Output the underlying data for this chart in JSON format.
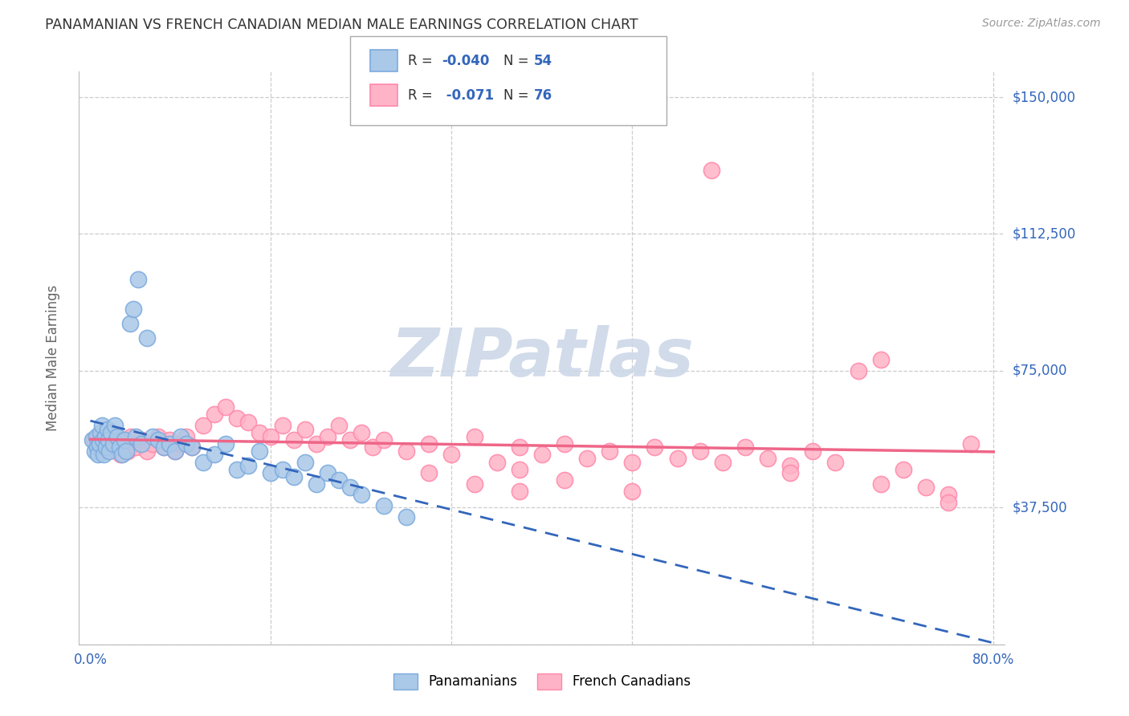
{
  "title": "PANAMANIAN VS FRENCH CANADIAN MEDIAN MALE EARNINGS CORRELATION CHART",
  "source": "Source: ZipAtlas.com",
  "ylabel": "Median Male Earnings",
  "r1": "-0.040",
  "n1": "54",
  "r2": " -0.071",
  "n2": "76",
  "legend_label1": "Panamanians",
  "legend_label2": "French Canadians",
  "blue_marker_color": "#aac8e8",
  "blue_marker_edge": "#7aaadd",
  "pink_marker_color": "#ffb3c6",
  "pink_marker_edge": "#ff88aa",
  "blue_line_color": "#3366bb",
  "pink_line_color": "#ee6688",
  "title_color": "#333333",
  "source_color": "#999999",
  "ylabel_color": "#666666",
  "tick_label_color": "#3366bb",
  "grid_color": "#cccccc",
  "xlim_min": 0,
  "xlim_max": 80,
  "ylim_min": 0,
  "ylim_max": 157000,
  "y_ticks": [
    0,
    37500,
    75000,
    112500,
    150000
  ],
  "y_right_labels": [
    "",
    "$37,500",
    "$75,000",
    "$112,500",
    "$150,000"
  ],
  "blue_x": [
    0.2,
    0.4,
    0.5,
    0.6,
    0.7,
    0.8,
    0.9,
    1.0,
    1.1,
    1.2,
    1.3,
    1.4,
    1.5,
    1.6,
    1.7,
    1.8,
    2.0,
    2.2,
    2.4,
    2.6,
    2.8,
    3.0,
    3.2,
    3.5,
    3.8,
    4.0,
    4.2,
    4.5,
    5.0,
    5.5,
    6.0,
    6.5,
    7.0,
    7.5,
    8.0,
    8.5,
    9.0,
    10.0,
    11.0,
    12.0,
    13.0,
    14.0,
    15.0,
    16.0,
    17.0,
    18.0,
    19.0,
    20.0,
    21.0,
    22.0,
    23.0,
    24.0,
    26.0,
    28.0
  ],
  "blue_y": [
    56000,
    53000,
    57000,
    54000,
    52000,
    55000,
    58000,
    60000,
    56000,
    52000,
    57000,
    54000,
    59000,
    56000,
    53000,
    58000,
    55000,
    60000,
    57000,
    54000,
    52000,
    56000,
    53000,
    88000,
    92000,
    57000,
    100000,
    55000,
    84000,
    57000,
    56000,
    54000,
    55000,
    53000,
    57000,
    55000,
    54000,
    50000,
    52000,
    55000,
    48000,
    49000,
    53000,
    47000,
    48000,
    46000,
    50000,
    44000,
    47000,
    45000,
    43000,
    41000,
    38000,
    35000
  ],
  "pink_x": [
    0.3,
    0.6,
    0.9,
    1.2,
    1.5,
    1.8,
    2.1,
    2.4,
    2.7,
    3.0,
    3.3,
    3.6,
    4.0,
    4.5,
    5.0,
    5.5,
    6.0,
    6.5,
    7.0,
    7.5,
    8.0,
    8.5,
    9.0,
    10.0,
    11.0,
    12.0,
    13.0,
    14.0,
    15.0,
    16.0,
    17.0,
    18.0,
    19.0,
    20.0,
    21.0,
    22.0,
    23.0,
    24.0,
    25.0,
    26.0,
    28.0,
    30.0,
    32.0,
    34.0,
    36.0,
    38.0,
    40.0,
    42.0,
    44.0,
    46.0,
    48.0,
    50.0,
    52.0,
    54.0,
    56.0,
    58.0,
    60.0,
    62.0,
    64.0,
    66.0,
    68.0,
    70.0,
    72.0,
    74.0,
    76.0,
    78.0,
    30.0,
    34.0,
    38.0,
    42.0,
    48.0,
    55.0,
    62.0,
    70.0,
    76.0,
    38.0
  ],
  "pink_y": [
    56000,
    54000,
    57000,
    53000,
    55000,
    57000,
    54000,
    56000,
    52000,
    55000,
    53000,
    57000,
    54000,
    56000,
    53000,
    55000,
    57000,
    54000,
    56000,
    53000,
    55000,
    57000,
    54000,
    60000,
    63000,
    65000,
    62000,
    61000,
    58000,
    57000,
    60000,
    56000,
    59000,
    55000,
    57000,
    60000,
    56000,
    58000,
    54000,
    56000,
    53000,
    55000,
    52000,
    57000,
    50000,
    54000,
    52000,
    55000,
    51000,
    53000,
    50000,
    54000,
    51000,
    53000,
    50000,
    54000,
    51000,
    49000,
    53000,
    50000,
    75000,
    78000,
    48000,
    43000,
    41000,
    55000,
    47000,
    44000,
    48000,
    45000,
    42000,
    130000,
    47000,
    44000,
    39000,
    42000
  ]
}
